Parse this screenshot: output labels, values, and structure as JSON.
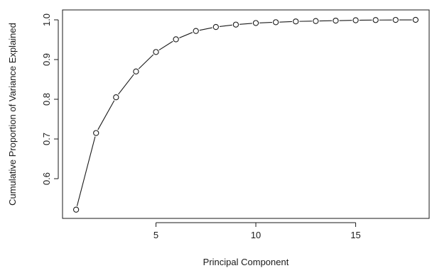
{
  "chart_data": {
    "type": "line",
    "title": "",
    "xlabel": "Principal Component",
    "ylabel": "Cumulative Proportion of Variance Explained",
    "x": [
      1,
      2,
      3,
      4,
      5,
      6,
      7,
      8,
      9,
      10,
      11,
      12,
      13,
      14,
      15,
      16,
      17,
      18
    ],
    "series": [
      {
        "values": [
          0.522,
          0.715,
          0.805,
          0.87,
          0.919,
          0.951,
          0.972,
          0.982,
          0.988,
          0.992,
          0.994,
          0.996,
          0.997,
          0.998,
          0.999,
          0.9995,
          0.9998,
          1.0
        ]
      }
    ],
    "xlim": [
      0.32,
      18.68
    ],
    "ylim": [
      0.5,
      1.025
    ],
    "xticks": [
      5,
      10,
      15
    ],
    "xtick_labels": [
      "5",
      "10",
      "15"
    ],
    "yticks": [
      0.6,
      0.7,
      0.8,
      0.9,
      1.0
    ],
    "ytick_labels": [
      "0.6",
      "0.7",
      "0.8",
      "0.9",
      "1.0"
    ],
    "marker": "open-circle",
    "line_color": "#1a1a1a",
    "grid": false,
    "legend": "none"
  }
}
